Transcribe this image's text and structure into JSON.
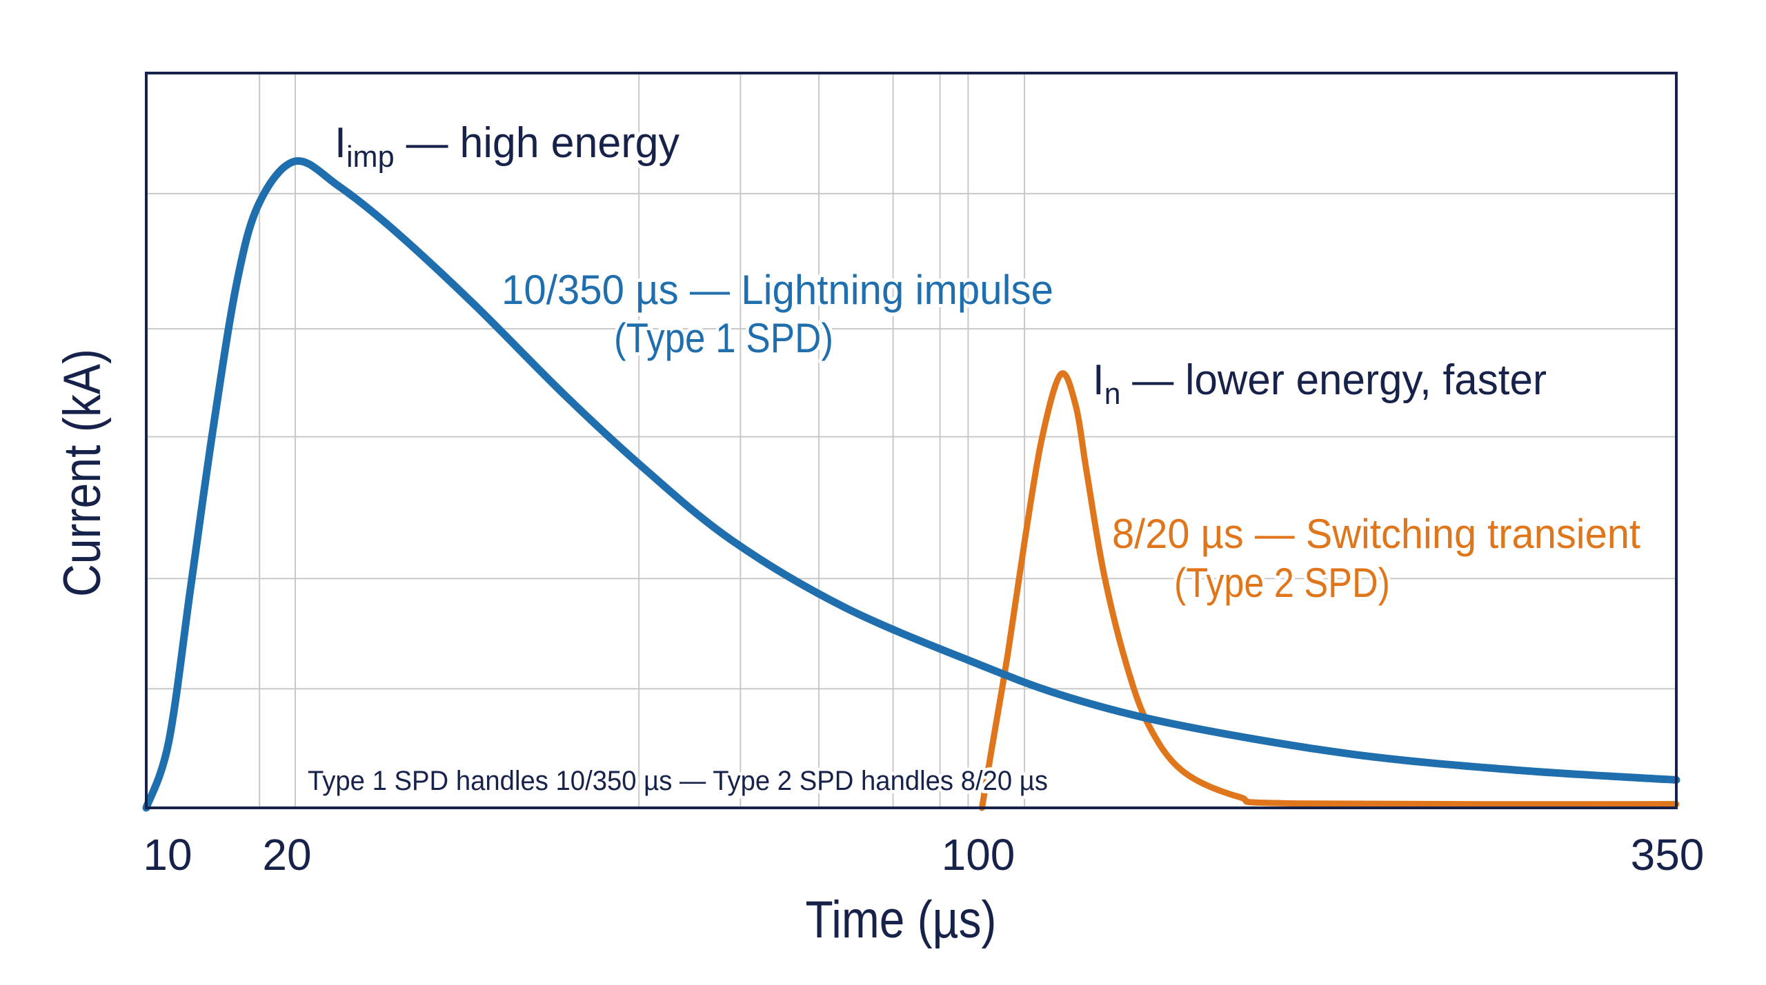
{
  "chart_data": {
    "type": "line",
    "title": "",
    "xlabel": "Time (µs)",
    "ylabel": "Current (kA)",
    "x_ticks": [
      10,
      20,
      100,
      350
    ],
    "x_tick_labels": [
      "10",
      "20",
      "100",
      "350"
    ],
    "xlim": [
      10,
      350
    ],
    "ylim": [
      0,
      1
    ],
    "y_ticks_labeled": false,
    "grid": true,
    "legend": "none",
    "series": [
      {
        "color": "#1f6eae",
        "x": [
          10,
          11.5,
          13.0,
          14.5,
          16.1,
          17.6,
          20,
          25.0,
          31.6,
          40.9,
          51.4,
          60.7,
          71.2,
          84.4,
          100,
          133,
          173,
          234,
          294,
          350
        ],
        "y": [
          0,
          0.089,
          0.303,
          0.518,
          0.717,
          0.824,
          0.88,
          0.847,
          0.786,
          0.686,
          0.564,
          0.464,
          0.364,
          0.273,
          0.196,
          0.15,
          0.112,
          0.073,
          0.051,
          0.038
        ]
      },
      {
        "color": "#e0761c",
        "x": [
          101.6,
          104.8,
          110.9,
          116.9,
          123,
          129.8,
          135.1,
          139.1,
          145.2,
          153.2,
          161.3,
          173.4,
          193.5,
          213.7,
          350
        ],
        "y": [
          0,
          0.074,
          0.211,
          0.364,
          0.502,
          0.59,
          0.548,
          0.456,
          0.319,
          0.196,
          0.112,
          0.05,
          0.015,
          0.006,
          0.005
        ]
      }
    ],
    "annotations": {
      "imp": {
        "main": "I",
        "sub": "imp",
        "rest": " — high energy"
      },
      "lightning_line1": "10/350 µs — Lightning impulse",
      "lightning_line2": "(Type 1 SPD)",
      "n": {
        "main": "I",
        "sub": "n",
        "rest": " — lower energy, faster"
      },
      "switching_line1": "8/20 µs — Switching transient",
      "switching_line2": "(Type 2 SPD)",
      "footnote": "Type 1 SPD handles 10/350 µs — Type 2 SPD handles 8/20 µs"
    },
    "colors": {
      "axis_text": "#17224a",
      "impulse": "#1f6eae",
      "switching": "#e0761c",
      "grid": "#c8c8c8"
    }
  }
}
